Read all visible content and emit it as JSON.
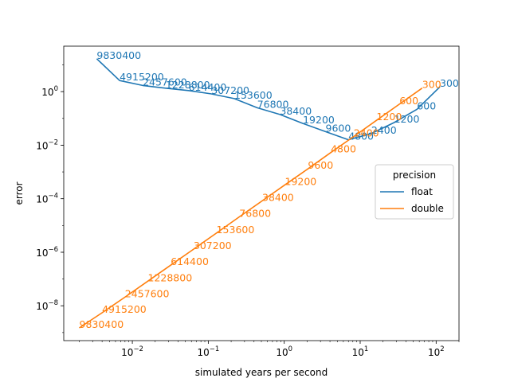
{
  "chart_data": {
    "type": "line",
    "xlabel": "simulated years per second",
    "ylabel": "error",
    "xscale": "log",
    "yscale": "log",
    "xlim": [
      0.00125,
      200
    ],
    "ylim": [
      5e-10,
      50
    ],
    "x_ticks": [
      {
        "value": 0.01,
        "base": "10",
        "exp": "−2"
      },
      {
        "value": 0.1,
        "base": "10",
        "exp": "−1"
      },
      {
        "value": 1,
        "base": "10",
        "exp": "0"
      },
      {
        "value": 10,
        "base": "10",
        "exp": "1"
      },
      {
        "value": 100,
        "base": "10",
        "exp": "2"
      }
    ],
    "y_ticks": [
      {
        "value": 1e-08,
        "base": "10",
        "exp": "−8"
      },
      {
        "value": 1e-06,
        "base": "10",
        "exp": "−6"
      },
      {
        "value": 0.0001,
        "base": "10",
        "exp": "−4"
      },
      {
        "value": 0.01,
        "base": "10",
        "exp": "−2"
      },
      {
        "value": 1,
        "base": "10",
        "exp": "0"
      }
    ],
    "legend": {
      "title": "precision",
      "placement": "center-right"
    },
    "series": [
      {
        "name": "float",
        "color": "#1f77b4",
        "points": [
          {
            "x": 0.0034,
            "y": 17,
            "label": "9830400"
          },
          {
            "x": 0.0068,
            "y": 2.6,
            "label": "4915200"
          },
          {
            "x": 0.0137,
            "y": 1.7,
            "label": "2457600"
          },
          {
            "x": 0.0275,
            "y": 1.35,
            "label": "1228800"
          },
          {
            "x": 0.055,
            "y": 1.1,
            "label": "614400"
          },
          {
            "x": 0.11,
            "y": 0.82,
            "label": "307200"
          },
          {
            "x": 0.22,
            "y": 0.55,
            "label": "153600"
          },
          {
            "x": 0.44,
            "y": 0.25,
            "label": "76800"
          },
          {
            "x": 0.88,
            "y": 0.14,
            "label": "38400"
          },
          {
            "x": 1.76,
            "y": 0.065,
            "label": "19200"
          },
          {
            "x": 3.5,
            "y": 0.032,
            "label": "9600"
          },
          {
            "x": 7.0,
            "y": 0.016,
            "label": "4800"
          },
          {
            "x": 14.0,
            "y": 0.027,
            "label": "2400"
          },
          {
            "x": 28.0,
            "y": 0.07,
            "label": "1200"
          },
          {
            "x": 56.0,
            "y": 0.22,
            "label": "600"
          },
          {
            "x": 112.0,
            "y": 1.5,
            "label": "300"
          }
        ]
      },
      {
        "name": "double",
        "color": "#ff7f0e",
        "points": [
          {
            "x": 0.002,
            "y": 1.5e-09,
            "label": "9830400"
          },
          {
            "x": 0.004,
            "y": 5.5e-09,
            "label": "4915200"
          },
          {
            "x": 0.008,
            "y": 2.1e-08,
            "label": "2457600"
          },
          {
            "x": 0.016,
            "y": 8.3e-08,
            "label": "1228800"
          },
          {
            "x": 0.032,
            "y": 3.3e-07,
            "label": "614400"
          },
          {
            "x": 0.064,
            "y": 1.3e-06,
            "label": "307200"
          },
          {
            "x": 0.128,
            "y": 5.2e-06,
            "label": "153600"
          },
          {
            "x": 0.256,
            "y": 2.1e-05,
            "label": "76800"
          },
          {
            "x": 0.512,
            "y": 8.3e-05,
            "label": "38400"
          },
          {
            "x": 1.02,
            "y": 0.00033,
            "label": "19200"
          },
          {
            "x": 2.05,
            "y": 0.0013,
            "label": "9600"
          },
          {
            "x": 4.1,
            "y": 0.0053,
            "label": "4800"
          },
          {
            "x": 8.2,
            "y": 0.021,
            "label": "2400"
          },
          {
            "x": 16.4,
            "y": 0.085,
            "label": "1200"
          },
          {
            "x": 32.8,
            "y": 0.34,
            "label": "600"
          },
          {
            "x": 65.5,
            "y": 1.36,
            "label": "300"
          }
        ]
      }
    ]
  }
}
